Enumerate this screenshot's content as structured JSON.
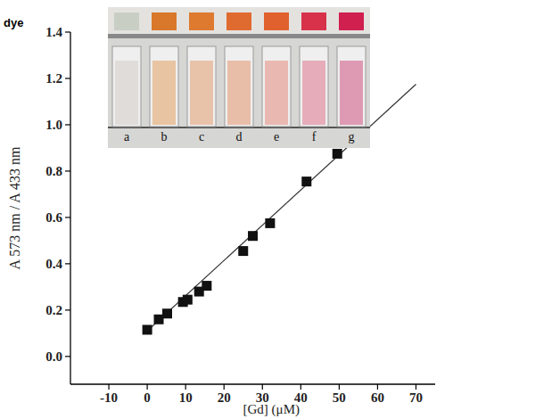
{
  "chart_data": {
    "type": "scatter",
    "annotation": "dye",
    "x_label": "[Gd]  (μM)",
    "y_label": "A 573 nm / A 433 nm",
    "xlim": [
      -20,
      75
    ],
    "ylim": [
      -0.12,
      1.4
    ],
    "xticks": [
      -10,
      0,
      10,
      20,
      30,
      40,
      50,
      60,
      70
    ],
    "yticks": [
      {
        "value": 0,
        "label": "0.0"
      },
      0.2,
      0.4,
      0.6,
      0.8,
      {
        "value": 1,
        "label": "1.0"
      },
      1.2,
      1.4
    ],
    "series": [
      {
        "type": "scatter",
        "marker": "square",
        "color": "#111111",
        "x": [
          0,
          3,
          5.2,
          9.3,
          10.5,
          13.5,
          15.5,
          25,
          27.5,
          32,
          41.5,
          49.5
        ],
        "values": [
          0.115,
          0.16,
          0.185,
          0.235,
          0.245,
          0.28,
          0.305,
          0.455,
          0.52,
          0.575,
          0.755,
          0.875
        ]
      },
      {
        "type": "line",
        "line_style": "solid",
        "color": "#333333",
        "x": [
          0,
          70
        ],
        "values": [
          0.11,
          1.175
        ]
      }
    ]
  },
  "inset": {
    "labels": [
      "a",
      "b",
      "c",
      "d",
      "e",
      "f",
      "g"
    ]
  }
}
